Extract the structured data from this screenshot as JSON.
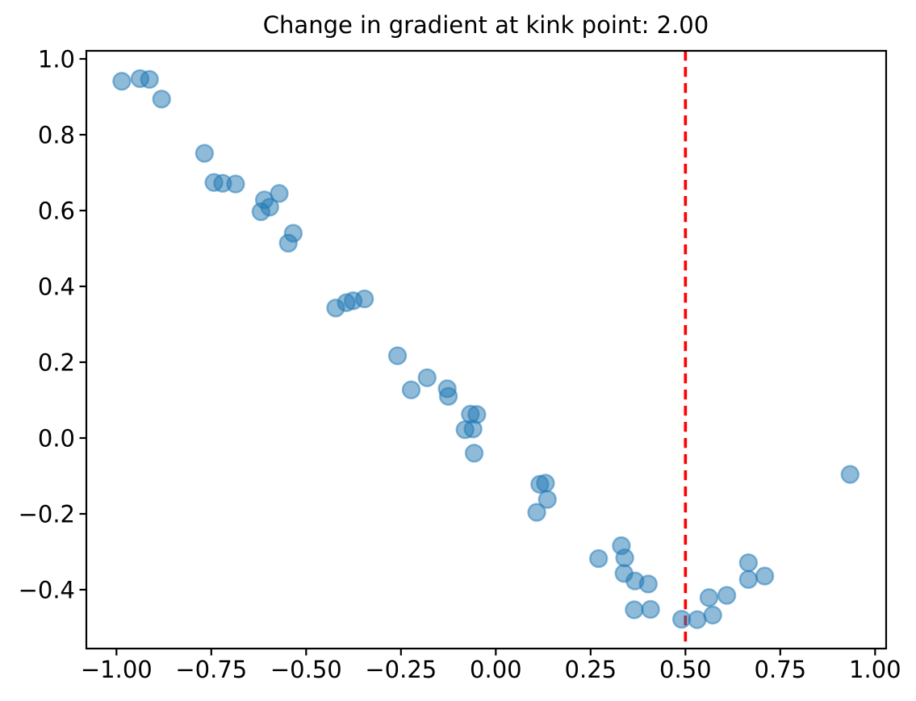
{
  "chart_data": {
    "type": "scatter",
    "title": "Change in gradient at kink point: 2.00",
    "xlabel": "",
    "ylabel": "",
    "grid": false,
    "legend": null,
    "xlim": [
      -1.0794,
      1.0291
    ],
    "ylim": [
      -0.5553,
      1.0213
    ],
    "x_ticks": {
      "values": [
        -1.0,
        -0.75,
        -0.5,
        -0.25,
        0.0,
        0.25,
        0.5,
        0.75,
        1.0
      ],
      "labels": [
        "−1.00",
        "−0.75",
        "−0.50",
        "−0.25",
        "0.00",
        "0.25",
        "0.50",
        "0.75",
        "1.00"
      ]
    },
    "y_ticks": {
      "values": [
        1.0,
        0.8,
        0.6,
        0.4,
        0.2,
        0.0,
        -0.2,
        -0.4
      ],
      "labels": [
        "1.0",
        "0.8",
        "0.6",
        "0.4",
        "0.2",
        "0.0",
        "−0.2",
        "−0.4"
      ]
    },
    "series": [
      {
        "name": "scatter-points",
        "color": "#1f77b4",
        "alpha": 0.5,
        "points": [
          [
            -0.986,
            0.941
          ],
          [
            -0.938,
            0.948
          ],
          [
            -0.913,
            0.946
          ],
          [
            -0.881,
            0.894
          ],
          [
            -0.768,
            0.751
          ],
          [
            -0.743,
            0.674
          ],
          [
            -0.72,
            0.672
          ],
          [
            -0.686,
            0.67
          ],
          [
            -0.61,
            0.628
          ],
          [
            -0.619,
            0.597
          ],
          [
            -0.596,
            0.609
          ],
          [
            -0.571,
            0.645
          ],
          [
            -0.534,
            0.54
          ],
          [
            -0.547,
            0.514
          ],
          [
            -0.422,
            0.343
          ],
          [
            -0.394,
            0.357
          ],
          [
            -0.376,
            0.362
          ],
          [
            -0.346,
            0.367
          ],
          [
            -0.259,
            0.217
          ],
          [
            -0.223,
            0.127
          ],
          [
            -0.181,
            0.159
          ],
          [
            -0.128,
            0.13
          ],
          [
            -0.125,
            0.11
          ],
          [
            -0.067,
            0.063
          ],
          [
            -0.05,
            0.062
          ],
          [
            -0.081,
            0.022
          ],
          [
            -0.06,
            0.024
          ],
          [
            -0.057,
            -0.04
          ],
          [
            0.108,
            -0.196
          ],
          [
            0.116,
            -0.122
          ],
          [
            0.131,
            -0.119
          ],
          [
            0.136,
            -0.162
          ],
          [
            0.271,
            -0.318
          ],
          [
            0.331,
            -0.284
          ],
          [
            0.34,
            -0.316
          ],
          [
            0.338,
            -0.357
          ],
          [
            0.367,
            -0.377
          ],
          [
            0.402,
            -0.385
          ],
          [
            0.365,
            -0.453
          ],
          [
            0.408,
            -0.452
          ],
          [
            0.49,
            -0.478
          ],
          [
            0.531,
            -0.479
          ],
          [
            0.572,
            -0.467
          ],
          [
            0.562,
            -0.421
          ],
          [
            0.609,
            -0.415
          ],
          [
            0.666,
            -0.373
          ],
          [
            0.709,
            -0.364
          ],
          [
            0.666,
            -0.329
          ],
          [
            0.934,
            -0.096
          ]
        ]
      }
    ],
    "vline": {
      "x": 0.5,
      "color": "#ff0000",
      "style": "dashed"
    }
  },
  "colors": {
    "marker_fill": "#1f77b4",
    "marker_edge": "#1f77b4",
    "vline": "#ff0000",
    "axes": "#000000",
    "background": "#ffffff"
  }
}
